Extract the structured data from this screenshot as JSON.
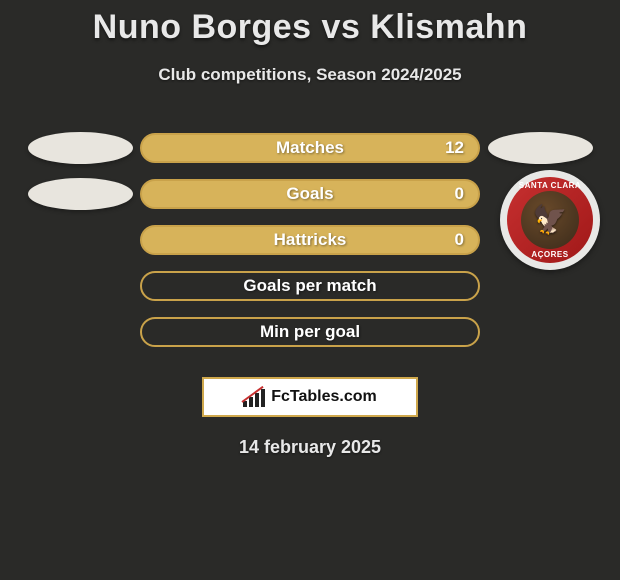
{
  "header": {
    "title": "Nuno Borges vs Klismahn",
    "subtitle": "Club competitions, Season 2024/2025"
  },
  "stats": [
    {
      "label": "Matches",
      "value": "12",
      "show_value": true,
      "fill": true
    },
    {
      "label": "Goals",
      "value": "0",
      "show_value": true,
      "fill": true
    },
    {
      "label": "Hattricks",
      "value": "0",
      "show_value": true,
      "fill": true
    },
    {
      "label": "Goals per match",
      "value": "",
      "show_value": false,
      "fill": false
    },
    {
      "label": "Min per goal",
      "value": "",
      "show_value": false,
      "fill": false
    }
  ],
  "left_avatar_rows": [
    0,
    1
  ],
  "right_avatar_rows": [
    0
  ],
  "club_badge": {
    "text_top": "SANTA CLARA",
    "text_bottom": "AÇORES",
    "ring_color_start": "#c73030",
    "ring_color_end": "#a01818"
  },
  "logo_text": "FcTables.com",
  "date": "14 february 2025",
  "colors": {
    "background": "#2a2a28",
    "bar_border": "#c9a24a",
    "bar_fill": "#d7b35a",
    "text": "#e8e8e8"
  },
  "typography": {
    "title_fontsize": 34,
    "subtitle_fontsize": 17,
    "stat_label_fontsize": 17,
    "date_fontsize": 18
  }
}
